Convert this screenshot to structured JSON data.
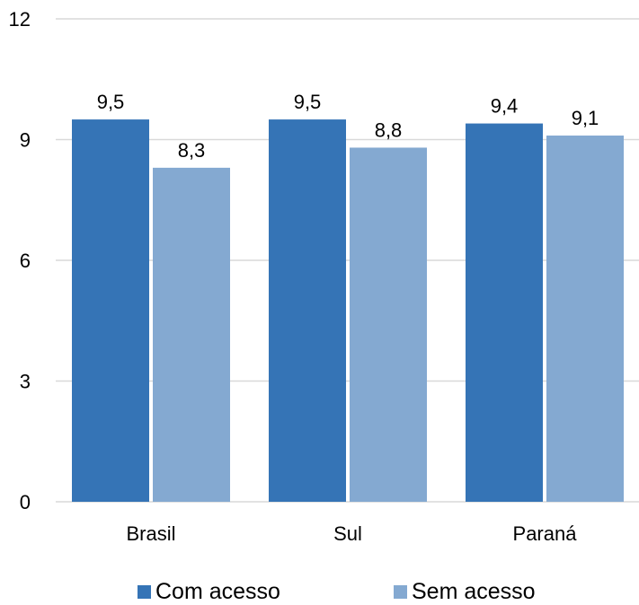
{
  "chart_data": {
    "type": "bar",
    "categories": [
      "Brasil",
      "Sul",
      "Paraná"
    ],
    "series": [
      {
        "name": "Com acesso",
        "values": [
          9.5,
          9.5,
          9.4
        ],
        "labels": [
          "9,5",
          "9,5",
          "9,4"
        ],
        "color": "#3574b6"
      },
      {
        "name": "Sem acesso",
        "values": [
          8.3,
          8.8,
          9.1
        ],
        "labels": [
          "8,3",
          "8,8",
          "9,1"
        ],
        "color": "#84a9d1"
      }
    ],
    "yticks": [
      0,
      3,
      6,
      9,
      12
    ],
    "ylim": [
      0,
      12
    ],
    "grid": true,
    "legend_position": "bottom"
  }
}
